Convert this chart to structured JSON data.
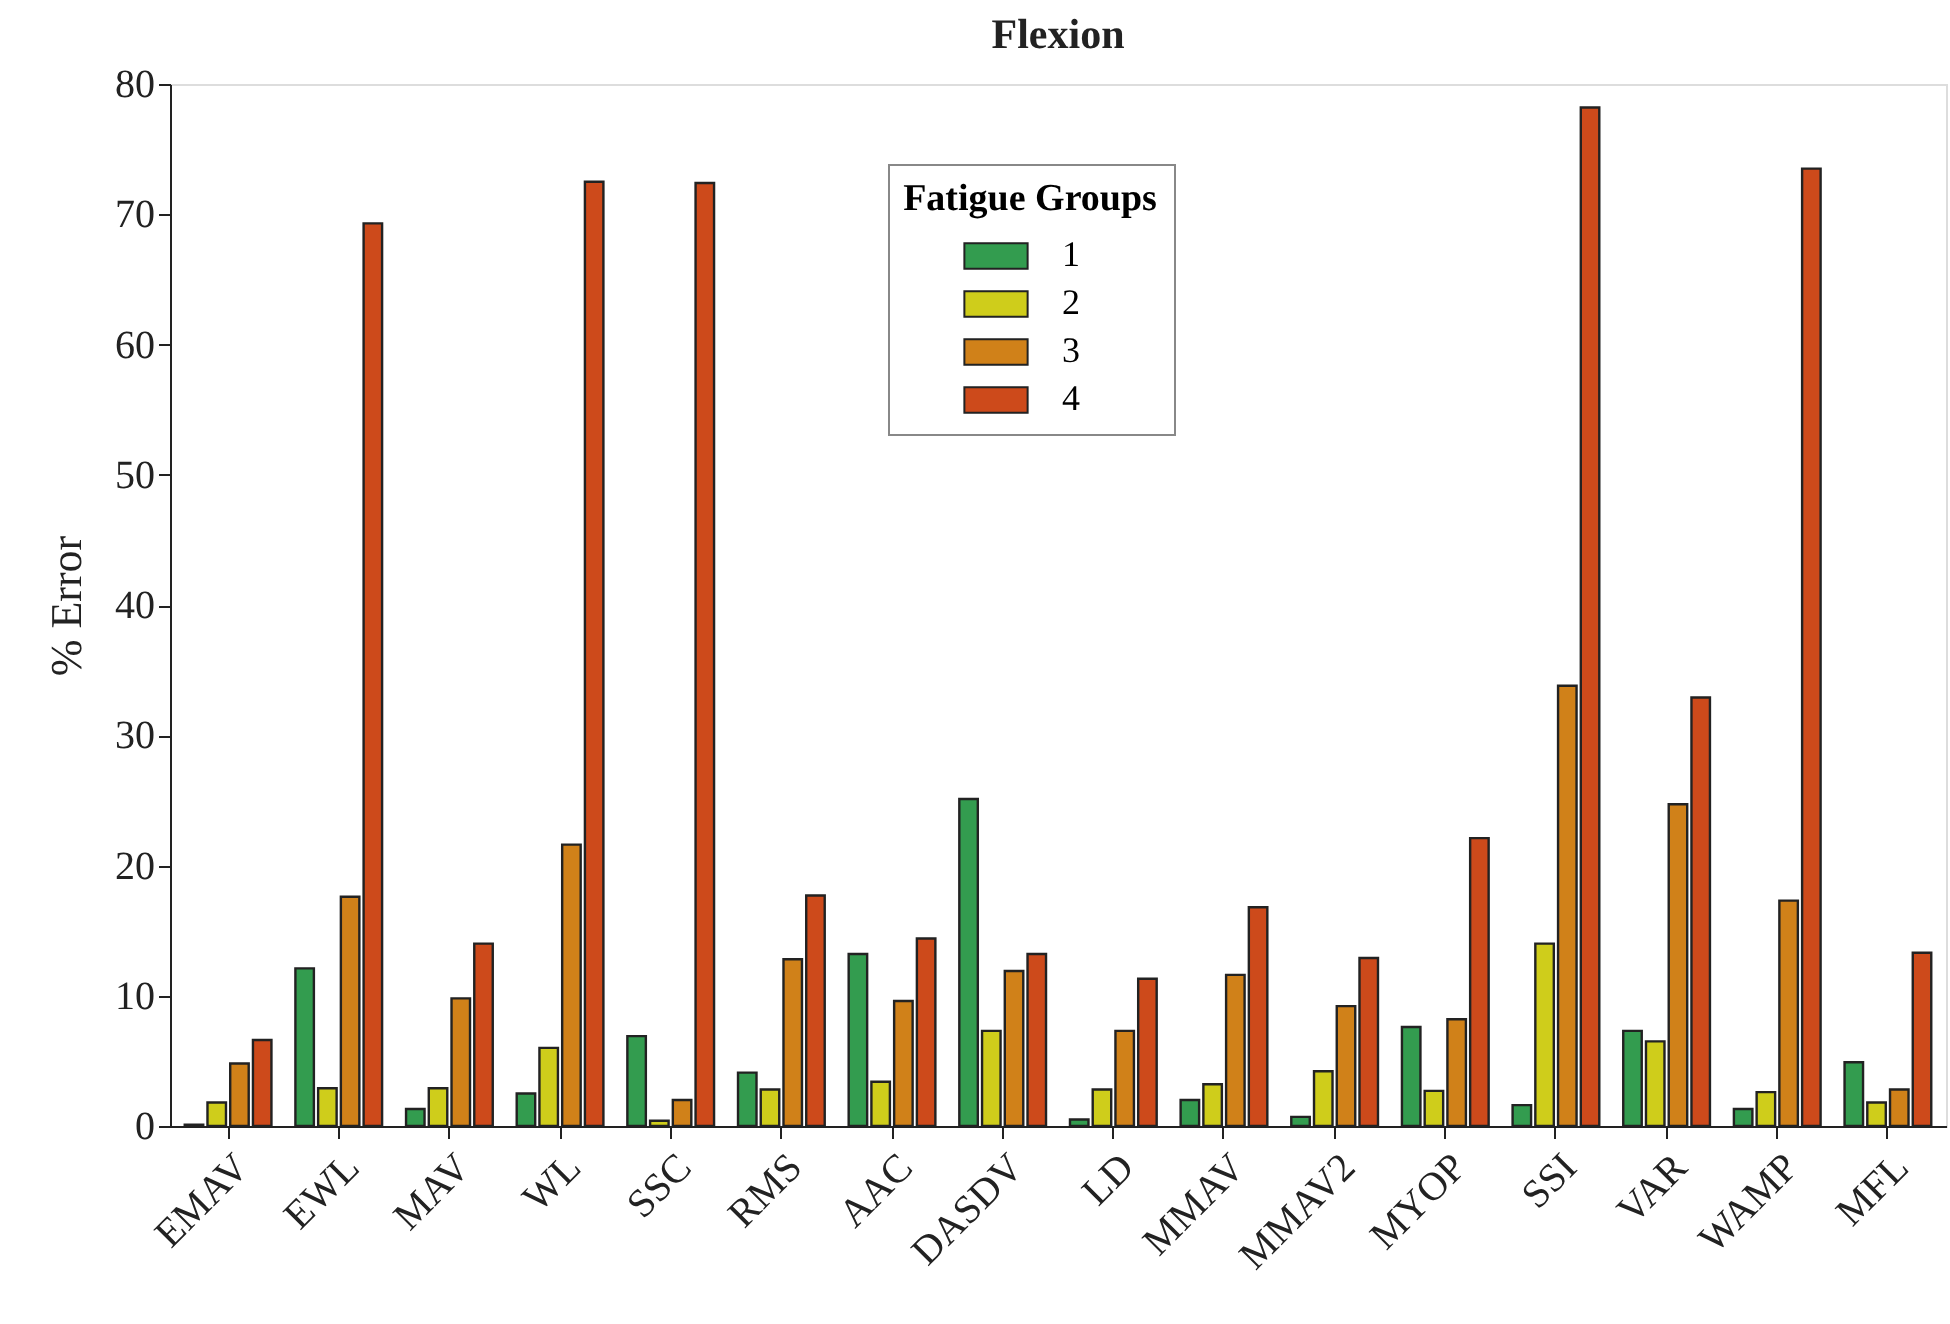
{
  "chart_data": {
    "type": "bar",
    "title": "Flexion",
    "ylabel": "% Error",
    "legend_title": "Fatigue Groups",
    "categories": [
      "EMAV",
      "EWL",
      "MAV",
      "WL",
      "SSC",
      "RMS",
      "AAC",
      "DASDV",
      "LD",
      "MMAV",
      "MMAV2",
      "MYOP",
      "SSI",
      "VAR",
      "WAMP",
      "MFL"
    ],
    "series": [
      {
        "name": "1",
        "color": "#339c4f",
        "values": [
          0.1,
          12.1,
          1.3,
          2.5,
          6.9,
          4.1,
          13.2,
          25.1,
          0.5,
          2.0,
          0.7,
          7.6,
          1.6,
          7.3,
          1.3,
          4.9
        ]
      },
      {
        "name": "2",
        "color": "#cfcd1b",
        "values": [
          1.8,
          2.9,
          2.9,
          6.0,
          0.4,
          2.8,
          3.4,
          7.3,
          2.8,
          3.2,
          4.2,
          2.7,
          14.0,
          6.5,
          2.6,
          1.8
        ]
      },
      {
        "name": "3",
        "color": "#d08119",
        "values": [
          4.8,
          17.6,
          9.8,
          21.6,
          2.0,
          12.8,
          9.6,
          11.9,
          7.3,
          11.6,
          9.2,
          8.2,
          33.8,
          24.7,
          17.3,
          2.8
        ]
      },
      {
        "name": "4",
        "color": "#cd4a1b",
        "values": [
          6.6,
          69.3,
          14.0,
          72.5,
          72.4,
          17.7,
          14.4,
          13.2,
          11.3,
          16.8,
          12.9,
          22.1,
          78.2,
          32.9,
          73.5,
          13.3
        ]
      }
    ],
    "ylim": [
      0,
      80
    ],
    "yticks": [
      0,
      10,
      20,
      30,
      40,
      50,
      60,
      70,
      80
    ],
    "grid": false,
    "legend": "top"
  }
}
